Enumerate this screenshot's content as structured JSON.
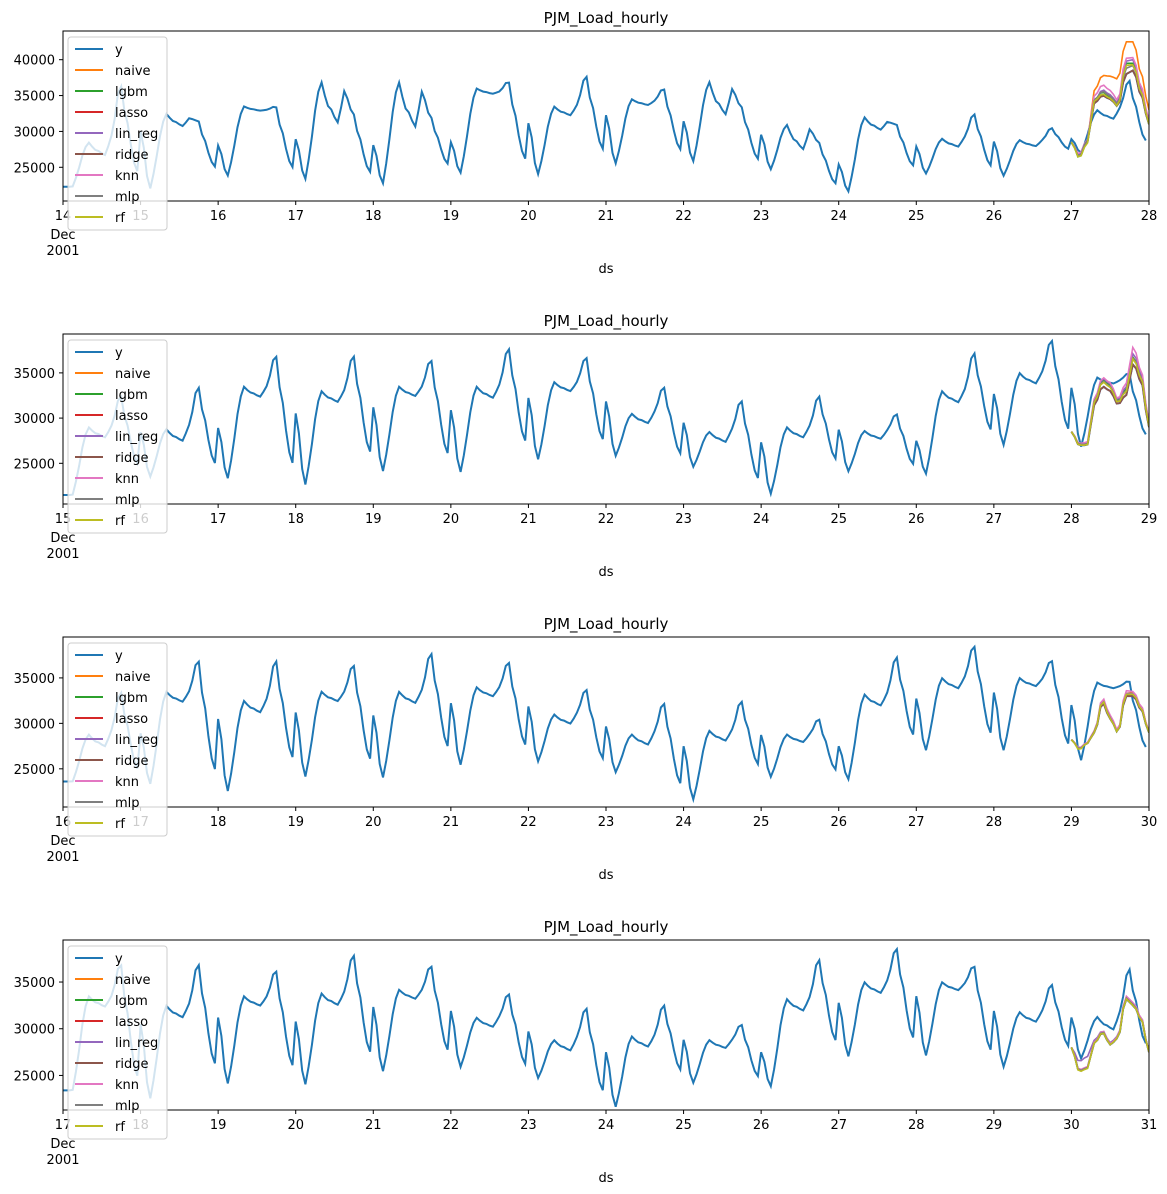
{
  "legend_items": [
    {
      "name": "y",
      "color": "#1f77b4"
    },
    {
      "name": "naive",
      "color": "#ff7f0e"
    },
    {
      "name": "lgbm",
      "color": "#2ca02c"
    },
    {
      "name": "lasso",
      "color": "#d62728"
    },
    {
      "name": "lin_reg",
      "color": "#9467bd"
    },
    {
      "name": "ridge",
      "color": "#8c564b"
    },
    {
      "name": "knn",
      "color": "#e377c2"
    },
    {
      "name": "mlp",
      "color": "#7f7f7f"
    },
    {
      "name": "rf",
      "color": "#bcbd22"
    }
  ],
  "chart_data": [
    {
      "type": "line",
      "title": "PJM_Load_hourly",
      "xlabel": "ds",
      "xlim_day": [
        14,
        28
      ],
      "ylim": [
        20300,
        44000
      ],
      "x_ticks": [
        "14",
        "15",
        "16",
        "17",
        "18",
        "19",
        "20",
        "21",
        "22",
        "23",
        "24",
        "25",
        "26",
        "27",
        "28"
      ],
      "x_tick_first_sub": [
        "Dec",
        "2001"
      ],
      "y_ticks": [
        25000,
        30000,
        35000,
        40000
      ],
      "daily": {
        "peak1": [
          28500,
          32500,
          33500,
          37000,
          37000,
          36000,
          33500,
          34500,
          37000,
          31000,
          32000,
          29000,
          28800,
          33000
        ],
        "peak2": [
          36500,
          31500,
          33500,
          32500,
          32000,
          37000,
          37800,
          36000,
          33500,
          28500,
          31000,
          32500,
          30500,
          37200
        ],
        "min": [
          22300,
          22000,
          23800,
          23300,
          22700,
          24200,
          24000,
          25500,
          25800,
          24700,
          21600,
          24100,
          23800,
          27000
        ]
      },
      "forecast": {
        "y": [
          28500,
          26500,
          28500,
          34000,
          35000,
          34500,
          33500,
          38000,
          38500,
          35000,
          31000
        ],
        "offsets": {
          "naive": [
            0,
            0,
            0,
            1800,
            2800,
            3200,
            3800,
            4500,
            4000,
            3000,
            2000
          ],
          "lgbm": [
            0,
            -200,
            -100,
            500,
            500,
            300,
            200,
            1500,
            1000,
            500,
            0
          ],
          "lasso": [
            0,
            0,
            0,
            0,
            0,
            0,
            0,
            0,
            0,
            0,
            0
          ],
          "lin_reg": [
            0,
            200,
            100,
            300,
            800,
            600,
            400,
            1800,
            1500,
            800,
            300
          ],
          "ridge": [
            0,
            0,
            0,
            0,
            0,
            0,
            0,
            0,
            0,
            0,
            0
          ],
          "knn": [
            0,
            300,
            300,
            1000,
            1500,
            1200,
            800,
            2200,
            1800,
            1200,
            500
          ],
          "mlp": [
            0,
            0,
            200,
            400,
            600,
            400,
            300,
            800,
            700,
            300,
            100
          ],
          "rf": [
            0,
            -200,
            -200,
            300,
            200,
            100,
            0,
            1200,
            800,
            400,
            0
          ]
        }
      }
    },
    {
      "type": "line",
      "title": "PJM_Load_hourly",
      "xlabel": "ds",
      "xlim_day": [
        15,
        29
      ],
      "ylim": [
        20500,
        39300
      ],
      "x_ticks": [
        "15",
        "16",
        "17",
        "18",
        "19",
        "20",
        "21",
        "22",
        "23",
        "24",
        "25",
        "26",
        "27",
        "28",
        "29"
      ],
      "x_tick_first_sub": [
        "Dec",
        "2001"
      ],
      "y_ticks": [
        25000,
        30000,
        35000
      ],
      "daily": {
        "peak1": [
          29000,
          28800,
          33500,
          33000,
          33500,
          33500,
          34000,
          30500,
          28500,
          29000,
          28600,
          33000,
          35000,
          34500
        ],
        "peak2": [
          32500,
          33500,
          37000,
          37000,
          36500,
          37800,
          36800,
          33500,
          32000,
          32500,
          30500,
          37300,
          38700,
          35000
        ],
        "min": [
          21500,
          23500,
          23300,
          22600,
          24100,
          24000,
          25400,
          25800,
          24600,
          21600,
          24100,
          23800,
          27000,
          26800
        ]
      },
      "forecast": {
        "y": [
          28500,
          27000,
          27000,
          31500,
          33500,
          33000,
          31500,
          32500,
          36000,
          34000,
          29000
        ],
        "offsets": {
          "naive": [
            0,
            0,
            0,
            500,
            800,
            600,
            400,
            600,
            800,
            600,
            200
          ],
          "lgbm": [
            0,
            0,
            0,
            400,
            700,
            600,
            400,
            700,
            800,
            500,
            200
          ],
          "lasso": [
            0,
            0,
            0,
            0,
            0,
            0,
            0,
            0,
            0,
            0,
            0
          ],
          "lin_reg": [
            0,
            100,
            200,
            500,
            900,
            800,
            500,
            900,
            1200,
            900,
            400
          ],
          "ridge": [
            0,
            0,
            0,
            0,
            0,
            0,
            0,
            0,
            0,
            0,
            0
          ],
          "knn": [
            0,
            200,
            300,
            700,
            1000,
            900,
            600,
            1300,
            1900,
            1200,
            500
          ],
          "mlp": [
            0,
            100,
            100,
            400,
            600,
            500,
            300,
            500,
            700,
            500,
            200
          ],
          "rf": [
            0,
            0,
            0,
            300,
            500,
            400,
            200,
            400,
            600,
            400,
            100
          ]
        }
      }
    },
    {
      "type": "line",
      "title": "PJM_Load_hourly",
      "xlabel": "ds",
      "xlim_day": [
        16,
        30
      ],
      "ylim": [
        20800,
        39500
      ],
      "x_ticks": [
        "16",
        "17",
        "18",
        "19",
        "20",
        "21",
        "22",
        "23",
        "24",
        "25",
        "26",
        "27",
        "28",
        "29",
        "30"
      ],
      "x_tick_first_sub": [
        "Dec",
        "2001"
      ],
      "y_ticks": [
        25000,
        30000,
        35000
      ],
      "daily": {
        "peak1": [
          28800,
          33500,
          32500,
          33500,
          33500,
          34000,
          31000,
          28800,
          29200,
          28800,
          33200,
          35000,
          35000,
          34500
        ],
        "peak2": [
          33500,
          37000,
          37000,
          36500,
          37800,
          36800,
          33800,
          32300,
          32500,
          30500,
          37400,
          38600,
          37000,
          34700
        ],
        "min": [
          23600,
          23300,
          22500,
          24100,
          24000,
          25400,
          25800,
          24600,
          21600,
          24100,
          23800,
          27000,
          27000,
          25900
        ]
      },
      "forecast": {
        "y": [
          28200,
          27200,
          27800,
          29000,
          32300,
          30500,
          29000,
          33000,
          33000,
          31500,
          29000
        ],
        "offsets": {
          "naive": [
            0,
            0,
            0,
            100,
            300,
            200,
            0,
            300,
            400,
            300,
            100
          ],
          "lgbm": [
            0,
            0,
            0,
            100,
            200,
            100,
            0,
            200,
            200,
            100,
            0
          ],
          "lasso": [
            0,
            0,
            0,
            0,
            0,
            0,
            0,
            0,
            0,
            0,
            0
          ],
          "lin_reg": [
            0,
            0,
            0,
            100,
            300,
            200,
            100,
            300,
            300,
            200,
            0
          ],
          "ridge": [
            0,
            0,
            0,
            0,
            0,
            0,
            0,
            0,
            0,
            0,
            0
          ],
          "knn": [
            0,
            100,
            100,
            200,
            500,
            400,
            200,
            600,
            500,
            400,
            100
          ],
          "mlp": [
            0,
            0,
            0,
            100,
            200,
            100,
            0,
            200,
            200,
            100,
            0
          ],
          "rf": [
            0,
            -100,
            0,
            0,
            200,
            0,
            0,
            200,
            200,
            100,
            0
          ]
        }
      }
    },
    {
      "type": "line",
      "title": "PJM_Load_hourly",
      "xlabel": "ds",
      "xlim_day": [
        17,
        31
      ],
      "ylim": [
        21300,
        39500
      ],
      "x_ticks": [
        "17",
        "18",
        "19",
        "20",
        "21",
        "22",
        "23",
        "24",
        "25",
        "26",
        "27",
        "28",
        "29",
        "30",
        "31"
      ],
      "x_tick_first_sub": [
        "Dec",
        "2001"
      ],
      "y_ticks": [
        25000,
        30000,
        35000
      ],
      "daily": {
        "peak1": [
          33500,
          32500,
          33500,
          33800,
          34200,
          31200,
          28800,
          29200,
          28800,
          33200,
          35000,
          35000,
          31800,
          31300
        ],
        "peak2": [
          37000,
          37000,
          36300,
          38000,
          36800,
          33800,
          32300,
          32600,
          30500,
          37500,
          38700,
          36800,
          34800,
          36500
        ],
        "min": [
          23400,
          22500,
          24100,
          24000,
          25400,
          25900,
          24700,
          21600,
          24200,
          23800,
          27000,
          27100,
          25900,
          26800
        ]
      },
      "forecast": {
        "y": [
          28000,
          25500,
          25800,
          28500,
          29600,
          28300,
          29000,
          33200,
          32500,
          31000,
          27500
        ],
        "offsets": {
          "naive": [
            0,
            0,
            0,
            0,
            100,
            100,
            0,
            200,
            200,
            100,
            0
          ],
          "lgbm": [
            0,
            0,
            0,
            0,
            0,
            0,
            0,
            0,
            0,
            0,
            0
          ],
          "lasso": [
            0,
            0,
            0,
            0,
            0,
            0,
            0,
            0,
            0,
            0,
            0
          ],
          "lin_reg": [
            0,
            1000,
            1200,
            300,
            200,
            200,
            200,
            200,
            200,
            200,
            0
          ],
          "ridge": [
            0,
            0,
            0,
            0,
            0,
            0,
            0,
            0,
            0,
            0,
            0
          ],
          "knn": [
            0,
            100,
            100,
            100,
            200,
            100,
            100,
            300,
            300,
            200,
            0
          ],
          "mlp": [
            0,
            0,
            0,
            0,
            100,
            0,
            0,
            100,
            100,
            0,
            0
          ],
          "rf": [
            0,
            -100,
            -100,
            0,
            0,
            0,
            0,
            0,
            0,
            0,
            0
          ]
        }
      }
    }
  ]
}
